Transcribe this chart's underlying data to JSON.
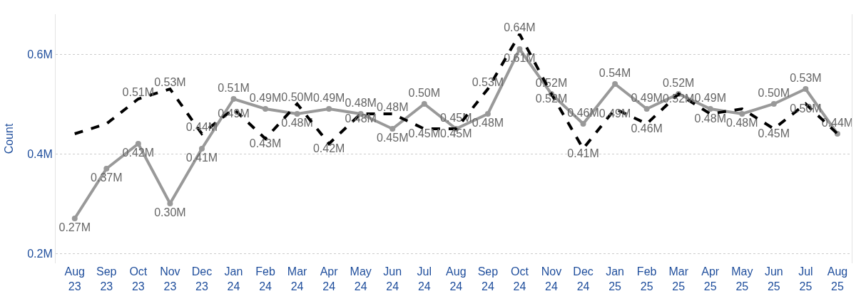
{
  "chart_data": {
    "type": "line",
    "ylabel": "Count",
    "categories": [
      "Aug 23",
      "Sep 23",
      "Oct 23",
      "Nov 23",
      "Dec 23",
      "Jan 24",
      "Feb 24",
      "Mar 24",
      "Apr 24",
      "May 24",
      "Jun 24",
      "Jul 24",
      "Aug 24",
      "Sep 24",
      "Oct 24",
      "Nov 24",
      "Dec 24",
      "Jan 25",
      "Feb 25",
      "Mar 25",
      "Apr 25",
      "May 25",
      "Jun 25",
      "Jul 25",
      "Aug 25"
    ],
    "series": [
      {
        "color": "#999999",
        "marker": "circle",
        "line_style": "solid",
        "values": [
          0.27,
          0.37,
          0.42,
          0.3,
          0.41,
          0.51,
          0.49,
          0.48,
          0.49,
          0.48,
          0.45,
          0.5,
          0.45,
          0.48,
          0.61,
          0.52,
          0.46,
          0.54,
          0.49,
          0.52,
          0.49,
          0.48,
          0.5,
          0.53,
          0.44
        ],
        "value_labels": [
          "0.27M",
          "0.37M",
          "0.42M",
          "0.30M",
          "0.41M",
          "0.51M",
          "0.49M",
          "0.48M",
          "0.49M",
          "0.48M",
          "0.45M",
          "0.50M",
          "0.45M",
          "0.48M",
          "0.61M",
          "0.52M",
          "0.46M",
          "0.54M",
          "0.49M",
          "0.52M",
          "0.49M",
          "0.48M",
          "0.50M",
          "0.53M",
          "0.44M"
        ]
      },
      {
        "color": "#000000",
        "marker": "none",
        "line_style": "dashed",
        "values": [
          0.44,
          0.46,
          0.51,
          0.53,
          0.44,
          0.49,
          0.43,
          0.5,
          0.42,
          0.48,
          0.48,
          0.45,
          0.45,
          0.53,
          0.64,
          0.52,
          0.41,
          0.49,
          0.46,
          0.52,
          0.48,
          0.49,
          0.45,
          0.5,
          0.44
        ],
        "value_labels": [
          null,
          null,
          "0.51M",
          "0.53M",
          "0.44M",
          "0.49M",
          "0.43M",
          "0.50M",
          "0.42M",
          "0.48M",
          "0.48M",
          "0.45M",
          "0.45M",
          "0.53M",
          "0.64M",
          "0.52M",
          "0.41M",
          "0.49M",
          "0.46M",
          "0.52M",
          "0.48M",
          null,
          "0.45M",
          "0.50M",
          null
        ]
      }
    ],
    "ylim": [
      0.18,
      0.68
    ],
    "yticks": [
      {
        "value": 0.2,
        "label": "0.2M"
      },
      {
        "value": 0.4,
        "label": "0.4M"
      },
      {
        "value": 0.6,
        "label": "0.6M"
      }
    ],
    "grid": "y"
  }
}
